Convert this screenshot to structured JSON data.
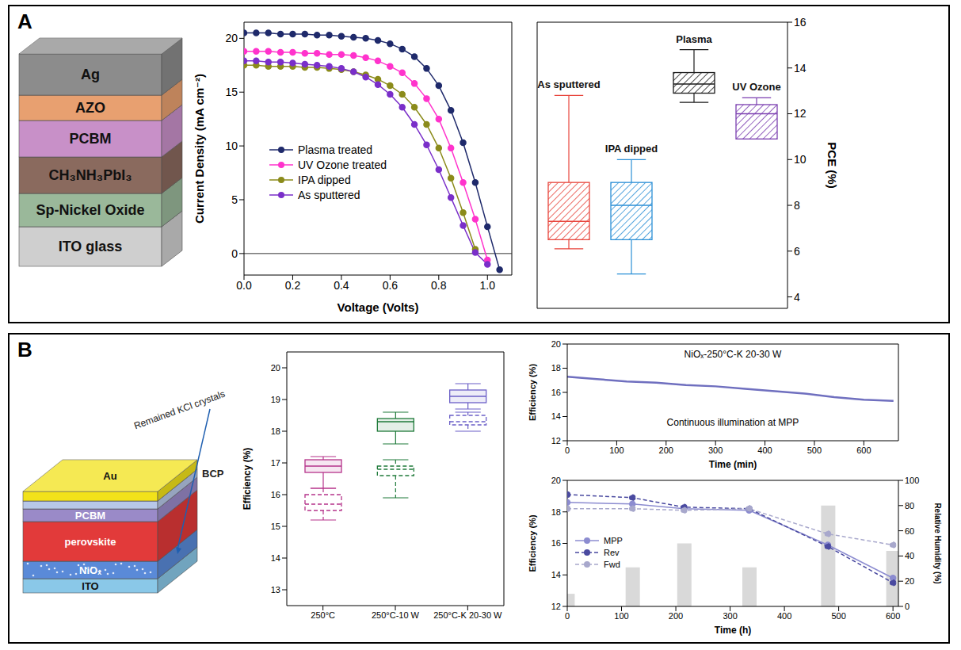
{
  "panels": [
    {
      "label": "A",
      "layers": [
        "Ag",
        "AZO",
        "PCBM",
        "CH₃NH₃PbI₃",
        "Sp-Nickel Oxide",
        "ITO glass"
      ]
    },
    {
      "label": "B",
      "layers": [
        "Au",
        "BCP",
        "PCBM",
        "perovskite",
        "NiOₓ",
        "ITO"
      ],
      "annotation": "Remained KCl crystals"
    }
  ],
  "chart_data": [
    {
      "type": "line",
      "xlabel": "Voltage (Volts)",
      "ylabel": "Current Density (mA cm⁻²)",
      "x": [
        0,
        0.05,
        0.1,
        0.15,
        0.2,
        0.25,
        0.3,
        0.35,
        0.4,
        0.45,
        0.5,
        0.55,
        0.6,
        0.65,
        0.7,
        0.75,
        0.8,
        0.85,
        0.9,
        0.95,
        1,
        1.05
      ],
      "xlim": [
        0,
        1.1
      ],
      "xticks": [
        {
          "value": 0,
          "label": "0.0"
        },
        0.2,
        0.4,
        0.6,
        0.8,
        {
          "value": 1,
          "label": "1.0"
        }
      ],
      "ylim": [
        -2,
        21.5
      ],
      "yticks": [
        0,
        5,
        10,
        15,
        20
      ],
      "legend": "center left",
      "marker": "circle",
      "series": [
        {
          "name": "Plasma treated",
          "color": "#1f2a6b",
          "values": [
            20.5,
            20.5,
            20.5,
            20.4,
            20.4,
            20.4,
            20.3,
            20.3,
            20.2,
            20.1,
            20.0,
            19.8,
            19.5,
            19.0,
            18.3,
            17.2,
            15.6,
            13.3,
            10.3,
            6.6,
            2.5,
            -1.5
          ]
        },
        {
          "name": "UV Ozone treated",
          "color": "#ff33cc",
          "values": [
            18.8,
            18.8,
            18.8,
            18.7,
            18.7,
            18.6,
            18.6,
            18.5,
            18.5,
            18.4,
            18.2,
            17.9,
            17.4,
            16.8,
            15.8,
            14.4,
            12.5,
            9.8,
            6.6,
            3.2,
            -0.6,
            null
          ]
        },
        {
          "name": "IPA dipped",
          "color": "#8b8b1a",
          "values": [
            17.5,
            17.5,
            17.4,
            17.4,
            17.4,
            17.3,
            17.3,
            17.2,
            17.1,
            16.9,
            16.6,
            16.2,
            15.6,
            14.8,
            13.6,
            12.0,
            9.8,
            7.0,
            3.8,
            0.4,
            null,
            null
          ]
        },
        {
          "name": "As sputtered",
          "color": "#7a2fc9",
          "values": [
            17.9,
            17.9,
            17.8,
            17.8,
            17.7,
            17.6,
            17.5,
            17.4,
            17.2,
            16.9,
            16.4,
            15.7,
            14.8,
            13.6,
            12.0,
            10.1,
            7.8,
            5.2,
            2.6,
            0.1,
            -1.0,
            null
          ]
        }
      ]
    },
    {
      "type": "box",
      "ylabel": "PCE (%)",
      "categories": [
        "As sputtered",
        "IPA dipped",
        "Plasma",
        "UV Ozone"
      ],
      "min": [
        6.1,
        5.0,
        12.5,
        10.9
      ],
      "q1": [
        6.5,
        6.5,
        12.9,
        10.9
      ],
      "median": [
        7.3,
        8.0,
        13.3,
        12.0
      ],
      "q3": [
        9.0,
        9.0,
        13.8,
        12.4
      ],
      "max": [
        12.8,
        10.0,
        14.8,
        12.7
      ],
      "colors": [
        "#e8453c",
        "#2b8fd6",
        "#1a1a1a",
        "#7b3fb0"
      ],
      "ylim": [
        3.5,
        16
      ],
      "yticks": [
        4,
        6,
        8,
        10,
        12,
        14,
        16
      ],
      "tick_labels": "y"
    },
    {
      "type": "box",
      "ylabel": "Efficiency (%)",
      "categories": [
        "250°C",
        "250°C-10 W",
        "250°C-K 20-30 W"
      ],
      "colors": [
        "#b5338a",
        "#1f7a3a",
        "#6b5fc7"
      ],
      "ylim": [
        12.5,
        20.5
      ],
      "yticks": [
        13,
        14,
        15,
        16,
        17,
        18,
        19,
        20
      ],
      "series": [
        {
          "line_style": "solid",
          "min": [
            16.2,
            17.6,
            18.7
          ],
          "q1": [
            16.7,
            18.0,
            18.9
          ],
          "median": [
            16.9,
            18.3,
            19.1
          ],
          "q3": [
            17.1,
            18.4,
            19.3
          ],
          "max": [
            17.2,
            18.6,
            19.5
          ]
        },
        {
          "line_style": "dashed",
          "min": [
            15.2,
            15.9,
            18.0
          ],
          "q1": [
            15.5,
            16.6,
            18.2
          ],
          "median": [
            15.7,
            16.8,
            18.3
          ],
          "q3": [
            16.0,
            16.9,
            18.5
          ],
          "max": [
            16.2,
            17.1,
            18.6
          ]
        }
      ]
    },
    {
      "type": "line",
      "annotations": [
        "NiOₓ-250°C-K 20-30 W",
        "Continuous illumination at MPP"
      ],
      "xlabel": "Time (min)",
      "ylabel": "Efficiency (%)",
      "x": [
        0,
        60,
        120,
        180,
        240,
        300,
        360,
        420,
        480,
        540,
        600,
        660
      ],
      "values": [
        17.3,
        17.1,
        16.9,
        16.8,
        16.6,
        16.5,
        16.3,
        16.1,
        15.9,
        15.6,
        15.4,
        15.3
      ],
      "color": "#6f6fbf",
      "xlim": [
        0,
        670
      ],
      "xticks": [
        0,
        100,
        200,
        300,
        400,
        500,
        600
      ],
      "ylim": [
        12,
        20
      ],
      "yticks": [
        12,
        14,
        16,
        18,
        20
      ]
    },
    {
      "type": "line",
      "xlabel": "Time (h)",
      "ylabel": "Efficiency (%)",
      "y2label": "Relative Humidity (%)",
      "x": [
        0,
        120,
        215,
        335,
        480,
        600
      ],
      "xlim": [
        0,
        610
      ],
      "xticks": [
        0,
        100,
        200,
        300,
        400,
        500,
        600
      ],
      "ylim": [
        12,
        20
      ],
      "yticks": [
        12,
        14,
        16,
        18,
        20
      ],
      "y2lim": [
        0,
        100
      ],
      "y2ticks": [
        0,
        20,
        40,
        60,
        80,
        100
      ],
      "legend": "center left",
      "series": [
        {
          "name": "MPP",
          "color": "#8c8cd0",
          "marker": "circle",
          "line_style": "solid",
          "values": [
            18.6,
            18.5,
            18.2,
            18.1,
            15.9,
            13.8
          ]
        },
        {
          "name": "Rev",
          "color": "#4a4aa0",
          "marker": "circle",
          "line_style": "dashed",
          "values": [
            19.1,
            18.9,
            18.3,
            18.2,
            15.8,
            13.5
          ]
        },
        {
          "name": "Fwd",
          "color": "#a8a8cc",
          "marker": "circle",
          "line_style": "dashed",
          "values": [
            18.2,
            18.2,
            18.1,
            18.2,
            16.6,
            15.9
          ]
        },
        {
          "type": "bar",
          "axis": "y2",
          "color": "#d9d9d9",
          "values": [
            10,
            31,
            50,
            31,
            80,
            44
          ]
        }
      ]
    }
  ]
}
